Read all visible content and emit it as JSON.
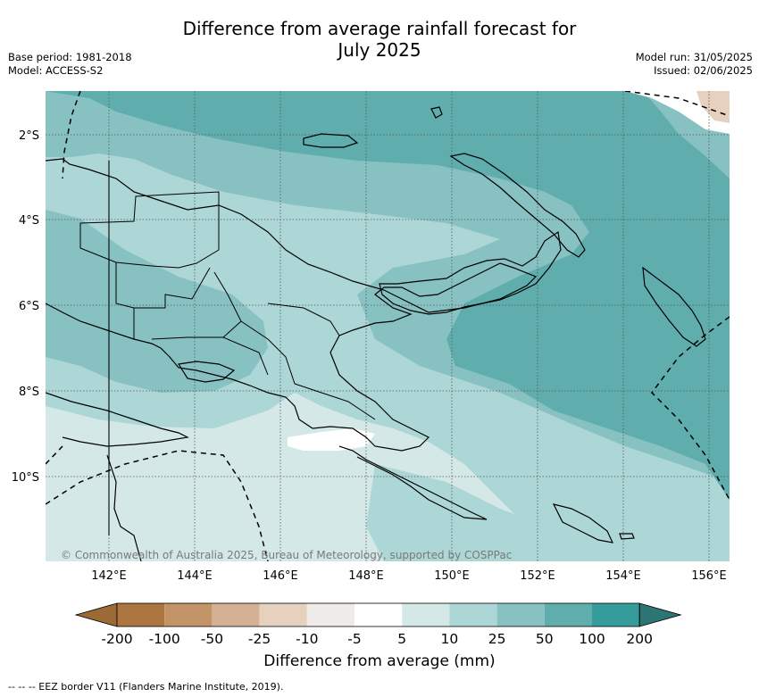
{
  "title": {
    "line1": "Difference from average rainfall forecast for",
    "line2": "July 2025"
  },
  "meta": {
    "base_period": "Base period: 1981-2018",
    "model": "Model: ACCESS-S2",
    "model_run": "Model run: 31/05/2025",
    "issued": "Issued: 02/06/2025"
  },
  "map": {
    "lat_labels": [
      "2°S",
      "4°S",
      "6°S",
      "8°S",
      "10°S"
    ],
    "lon_labels": [
      "142°E",
      "144°E",
      "146°E",
      "148°E",
      "150°E",
      "152°E",
      "154°E",
      "156°E"
    ],
    "copyright": "© Commonwealth of Australia 2025, Bureau of Meteorology, supported by COSPPac"
  },
  "colorbar": {
    "labels": [
      "-200",
      "-100",
      "-50",
      "-25",
      "-10",
      "-5",
      "5",
      "10",
      "25",
      "50",
      "100",
      "200"
    ],
    "colors": [
      "#9b6a35",
      "#ad7641",
      "#c39468",
      "#d4b094",
      "#e6d1be",
      "#efebe8",
      "#ffffff",
      "#d5e8e8",
      "#add6d6",
      "#88c1c1",
      "#5fadad",
      "#369b9b",
      "#2c7573"
    ],
    "label": "Difference from average (mm)"
  },
  "footnote": "--  --  -- EEZ border V11 (Flanders Marine Institute, 2019)."
}
